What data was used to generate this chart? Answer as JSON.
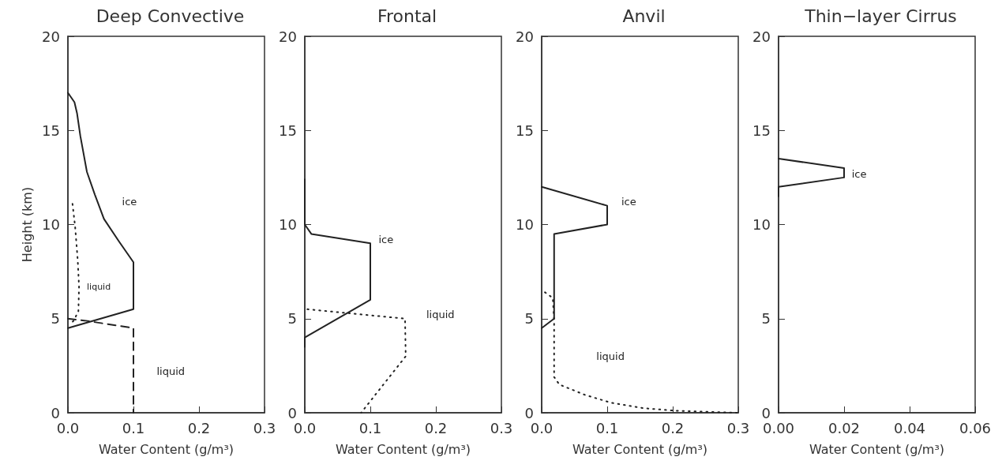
{
  "chart_data": [
    {
      "type": "line",
      "title": "Deep Convective",
      "xlabel": "Water Content (g/m³)",
      "ylabel": "Height (km)",
      "xlim": [
        0,
        0.3
      ],
      "ylim": [
        0,
        20
      ],
      "xticks": [
        {
          "value": 0,
          "label": "0.0"
        },
        {
          "value": 0.1,
          "label": "0.1"
        },
        {
          "value": 0.2,
          "label": "0.2"
        },
        {
          "value": 0.3,
          "label": "0.3"
        }
      ],
      "yticks": [
        0,
        5,
        10,
        15,
        20
      ],
      "marker": "none",
      "series": [
        {
          "color": "#222222",
          "line_style": "solid",
          "x": [
            0,
            0.01,
            0.014,
            0.019,
            0.029,
            0.041,
            0.055,
            0.078,
            0.1,
            0.1,
            0
          ],
          "values": [
            17.0,
            16.5,
            15.9,
            14.7,
            12.8,
            11.6,
            10.3,
            9.1,
            8.0,
            5.5,
            4.5
          ]
        },
        {
          "color": "#222222",
          "line_style": "dotted",
          "x": [
            0.007,
            0.011,
            0.015,
            0.017,
            0.016,
            0.009,
            0.003
          ],
          "values": [
            11.1,
            9.9,
            8.1,
            6.7,
            5.4,
            4.9,
            4.7
          ]
        },
        {
          "color": "#222222",
          "line_style": "dashed",
          "x": [
            0,
            0.025,
            0.1,
            0.1
          ],
          "values": [
            5.0,
            4.9,
            4.5,
            0
          ]
        }
      ],
      "annotations": [
        "ice",
        "liquid",
        "liquid"
      ]
    },
    {
      "type": "line",
      "title": "Frontal",
      "xlabel": "Water Content (g/m³)",
      "xlim": [
        0,
        0.3
      ],
      "ylim": [
        0,
        20
      ],
      "xticks": [
        {
          "value": 0,
          "label": "0.0"
        },
        {
          "value": 0.1,
          "label": "0.1"
        },
        {
          "value": 0.2,
          "label": "0.2"
        },
        {
          "value": 0.3,
          "label": "0.3"
        }
      ],
      "yticks": [
        0,
        5,
        10,
        15,
        20
      ],
      "marker": "none",
      "series": [
        {
          "color": "#222222",
          "line_style": "solid",
          "x": [
            0,
            0,
            0.01,
            0.1,
            0.1,
            0,
            0
          ],
          "values": [
            12.4,
            10.0,
            9.5,
            9.0,
            6.0,
            4.0,
            3.5
          ]
        },
        {
          "color": "#222222",
          "line_style": "dotted",
          "x": [
            0.004,
            0.153,
            0.154,
            0.086
          ],
          "values": [
            5.5,
            5.0,
            3.0,
            0
          ]
        }
      ],
      "annotations": [
        "ice",
        "liquid"
      ]
    },
    {
      "type": "line",
      "title": "Anvil",
      "xlabel": "Water Content (g/m³)",
      "xlim": [
        0,
        0.3
      ],
      "ylim": [
        0,
        20
      ],
      "xticks": [
        {
          "value": 0,
          "label": "0.0"
        },
        {
          "value": 0.1,
          "label": "0.1"
        },
        {
          "value": 0.2,
          "label": "0.2"
        },
        {
          "value": 0.3,
          "label": "0.3"
        }
      ],
      "yticks": [
        0,
        5,
        10,
        15,
        20
      ],
      "marker": "none",
      "series": [
        {
          "color": "#222222",
          "line_style": "solid",
          "x": [
            0,
            0.1,
            0.1,
            0.019,
            0.019,
            0
          ],
          "values": [
            12.0,
            11.0,
            10.0,
            9.5,
            5.0,
            4.5
          ]
        },
        {
          "color": "#222222",
          "line_style": "dotted",
          "x": [
            0.005,
            0.017,
            0.019,
            0.019,
            0.027,
            0.066,
            0.106,
            0.154,
            0.203,
            0.3
          ],
          "values": [
            6.4,
            6.1,
            4.9,
            1.9,
            1.5,
            0.95,
            0.53,
            0.25,
            0.11,
            0
          ]
        }
      ],
      "annotations": [
        "ice",
        "liquid"
      ]
    },
    {
      "type": "line",
      "title": "Thin−layer Cirrus",
      "xlabel": "Water Content (g/m³)",
      "xlim": [
        0,
        0.06
      ],
      "ylim": [
        0,
        20
      ],
      "xticks": [
        {
          "value": 0,
          "label": "0.00"
        },
        {
          "value": 0.02,
          "label": "0.02"
        },
        {
          "value": 0.04,
          "label": "0.04"
        },
        {
          "value": 0.06,
          "label": "0.06"
        }
      ],
      "yticks": [
        0,
        5,
        10,
        15,
        20
      ],
      "marker": "none",
      "series": [
        {
          "color": "#222222",
          "line_style": "solid",
          "x": [
            0,
            0.02,
            0.02,
            0,
            0
          ],
          "values": [
            13.5,
            13.0,
            12.5,
            12.0,
            11.5
          ]
        }
      ],
      "annotations": [
        "ice"
      ]
    }
  ]
}
